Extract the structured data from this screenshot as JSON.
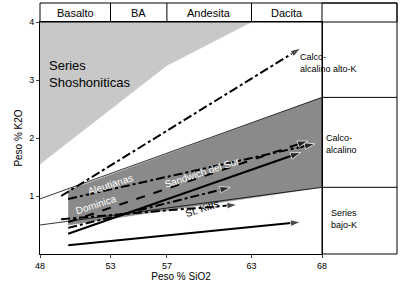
{
  "chart_data": {
    "type": "line",
    "xlabel": "Peso % SiO2",
    "ylabel": "Peso % K2O",
    "xlim": [
      48,
      68
    ],
    "xticks": [
      48,
      53,
      57,
      63,
      68
    ],
    "ylim": [
      0,
      4
    ],
    "yticks": [
      1,
      2,
      3,
      4
    ],
    "grid": false,
    "rock_fields": {
      "boundaries": [
        48,
        53,
        57,
        63,
        68
      ],
      "labels": [
        "Basalto",
        "BA",
        "Andesita",
        "Dacita"
      ]
    },
    "series_fields": {
      "boundaries": [
        2.7,
        1.15
      ],
      "labels": [
        {
          "text": "Calco-\nalcalino alto-K",
          "y": 3.3
        },
        {
          "text": "Calco-\nalcalino",
          "y": 1.9
        },
        {
          "text": "Series\nbajo-K",
          "y": 0.6
        }
      ]
    },
    "regions": [
      {
        "x": [
          48,
          57,
          63,
          48
        ],
        "values": [
          1.55,
          3.25,
          4,
          4
        ],
        "color": "#c8c8c8"
      },
      {
        "x": [
          50,
          68,
          68,
          50
        ],
        "values": [
          0.5,
          1.15,
          2.7,
          1.1
        ],
        "color": "#8a8a8a"
      }
    ],
    "boundaries": [
      {
        "x": [
          48,
          68
        ],
        "values": [
          0.95,
          2.7
        ]
      },
      {
        "x": [
          48,
          68
        ],
        "values": [
          0.5,
          1.15
        ]
      }
    ],
    "series": [
      {
        "x": [
          49.5,
          66.5
        ],
        "values": [
          1.0,
          3.55
        ],
        "line_style": "dashdot",
        "color": "#000000"
      },
      {
        "x": [
          50,
          67.5
        ],
        "values": [
          0.95,
          1.9
        ],
        "line_style": "dashdot",
        "color": "#000000"
      },
      {
        "x": [
          50,
          67
        ],
        "values": [
          0.55,
          1.95
        ],
        "line_style": "dash",
        "color": "#000000"
      },
      {
        "x": [
          50,
          66.5
        ],
        "values": [
          0.35,
          1.75
        ],
        "line_style": "solid",
        "color": "#000000"
      },
      {
        "x": [
          50,
          61.5
        ],
        "values": [
          0.45,
          1.15
        ],
        "line_style": "dashdot",
        "color": "#000000"
      },
      {
        "x": [
          49.5,
          62
        ],
        "values": [
          0.6,
          0.85
        ],
        "line_style": "dashdot",
        "color": "#000000"
      },
      {
        "x": [
          50,
          66.5
        ],
        "values": [
          0.15,
          0.55
        ],
        "line_style": "solid",
        "color": "#000000"
      }
    ],
    "annotations": [
      {
        "text": "Series\nShoshoniticas",
        "x": 51.5,
        "y": 3.1,
        "color": "#000000"
      },
      {
        "text": "Aleutianas",
        "x": 53,
        "y": 1.2,
        "color": "#ffffff"
      },
      {
        "text": "Dominica",
        "x": 52,
        "y": 0.85,
        "color": "#ffffff"
      },
      {
        "text": "Sandwich del Sur",
        "x": 59.5,
        "y": 1.4,
        "color": "#ffffff"
      },
      {
        "text": "St. Kitts",
        "x": 59.5,
        "y": 0.78,
        "color": "#000000"
      }
    ]
  }
}
